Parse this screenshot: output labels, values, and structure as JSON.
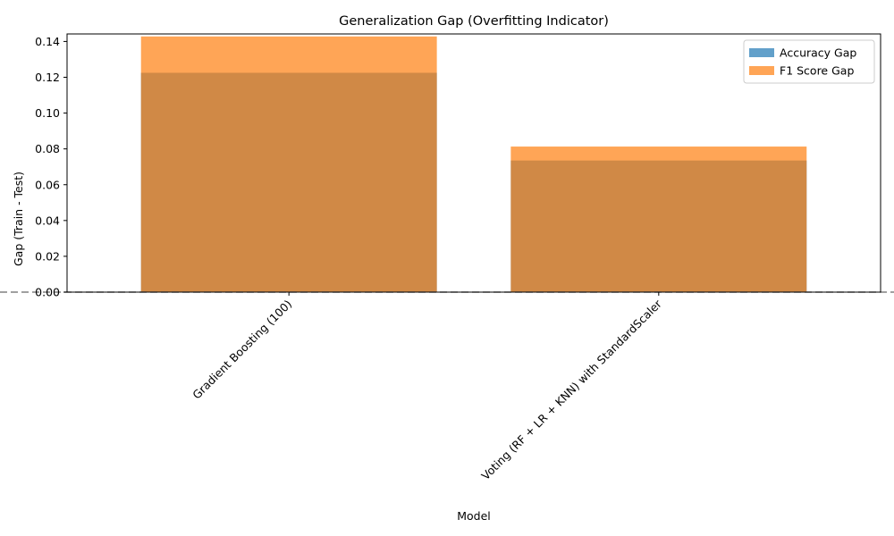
{
  "chart_data": {
    "type": "bar",
    "title": "Generalization Gap (Overfitting Indicator)",
    "xlabel": "Model",
    "ylabel": "Gap (Train - Test)",
    "categories": [
      "Gradient Boosting (100)",
      "Voting (RF + LR + KNN) with StandardScaler"
    ],
    "series": [
      {
        "name": "Accuracy Gap",
        "values": [
          0.1225,
          0.0735
        ],
        "color": "#1f77b4",
        "opacity": 0.7
      },
      {
        "name": "F1 Score Gap",
        "values": [
          0.1428,
          0.0813
        ],
        "color": "#ff7f0e",
        "opacity": 0.7
      }
    ],
    "ylim": [
      0,
      0.1442
    ],
    "yticks": [
      0.0,
      0.02,
      0.04,
      0.06,
      0.08,
      0.1,
      0.12,
      0.14
    ],
    "ytick_labels": [
      "0.00",
      "0.02",
      "0.04",
      "0.06",
      "0.08",
      "0.10",
      "0.12",
      "0.14"
    ],
    "reference_line": {
      "y": 0,
      "style": "dashed",
      "color": "#808080"
    },
    "grid": false,
    "legend_position": "top-right"
  }
}
